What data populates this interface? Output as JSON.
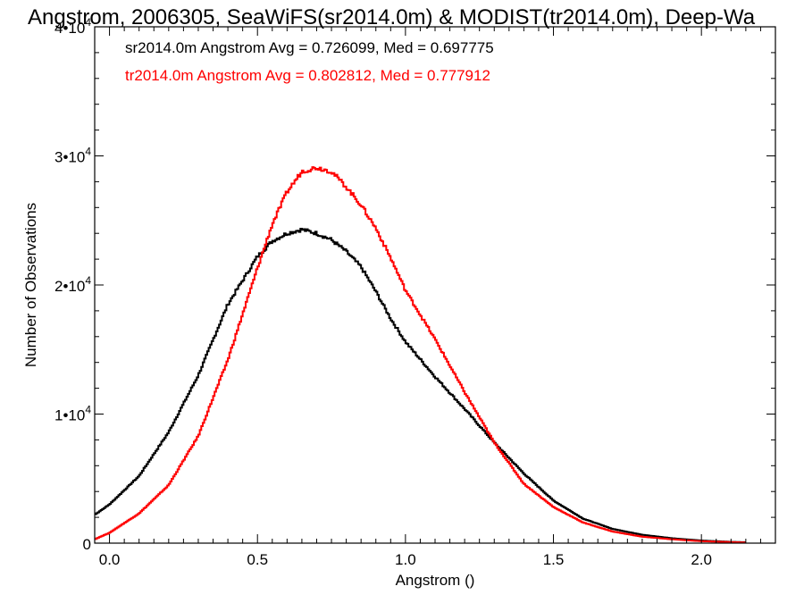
{
  "chart_data": {
    "type": "line",
    "title": "Angstrom, 2006305, SeaWiFS(sr2014.0m) & MODIST(tr2014.0m), Deep-Wa",
    "xlabel": "Angstrom ()",
    "ylabel": "Number of Observations",
    "xlim": [
      -0.05,
      2.25
    ],
    "ylim": [
      0,
      40000
    ],
    "x_ticks": [
      0.0,
      0.5,
      1.0,
      1.5,
      2.0
    ],
    "x_tick_labels": [
      "0.0",
      "0.5",
      "1.0",
      "1.5",
      "2.0"
    ],
    "y_ticks": [
      0,
      10000,
      20000,
      30000,
      40000
    ],
    "y_tick_labels": [
      {
        "base": "0",
        "exp": ""
      },
      {
        "base": "1•10",
        "exp": "4"
      },
      {
        "base": "2•10",
        "exp": "4"
      },
      {
        "base": "3•10",
        "exp": "4"
      },
      {
        "base": "4•10",
        "exp": "4"
      }
    ],
    "grid": false,
    "step": true,
    "annotations": [
      {
        "text": "sr2014.0m Angstrom Avg = 0.726099, Med = 0.697775",
        "color": "#000000"
      },
      {
        "text": "tr2014.0m Angstrom Avg = 0.802812, Med = 0.777912",
        "color": "#ff0000"
      }
    ],
    "series": [
      {
        "color": "#000000",
        "x": [
          -0.05,
          0.0,
          0.1,
          0.2,
          0.3,
          0.4,
          0.5,
          0.55,
          0.6,
          0.65,
          0.7,
          0.75,
          0.8,
          0.85,
          0.9,
          0.95,
          1.0,
          1.1,
          1.2,
          1.3,
          1.4,
          1.5,
          1.6,
          1.7,
          1.8,
          1.9,
          2.0,
          2.1,
          2.15
        ],
        "y": [
          2200,
          3000,
          5200,
          8600,
          13000,
          18500,
          22200,
          23400,
          24000,
          24300,
          24000,
          23500,
          22600,
          21400,
          19500,
          17400,
          15600,
          12900,
          10400,
          7800,
          5400,
          3300,
          1900,
          1100,
          650,
          380,
          200,
          100,
          70
        ]
      },
      {
        "color": "#ff0000",
        "x": [
          -0.05,
          0.0,
          0.1,
          0.2,
          0.3,
          0.4,
          0.5,
          0.55,
          0.6,
          0.65,
          0.7,
          0.75,
          0.8,
          0.85,
          0.9,
          0.95,
          1.0,
          1.1,
          1.2,
          1.3,
          1.4,
          1.5,
          1.6,
          1.7,
          1.8,
          1.9,
          2.0,
          2.1,
          2.15
        ],
        "y": [
          300,
          800,
          2300,
          4500,
          8300,
          14200,
          21300,
          24700,
          27200,
          28800,
          29100,
          28800,
          27600,
          26200,
          24400,
          22100,
          19600,
          15800,
          11700,
          7800,
          4600,
          2800,
          1600,
          900,
          500,
          300,
          150,
          80,
          50
        ]
      }
    ]
  }
}
